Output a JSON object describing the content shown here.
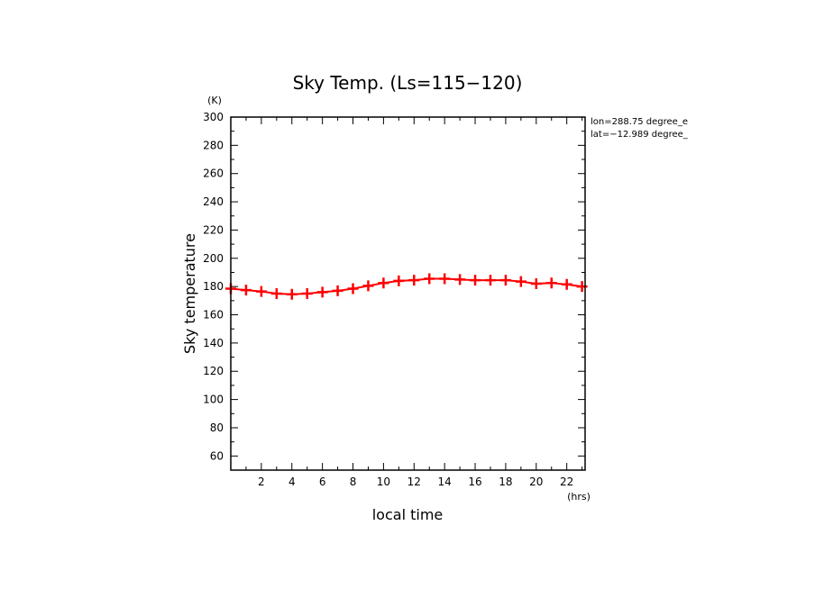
{
  "chart_data": {
    "type": "line",
    "title": "Sky Temp. (Ls=115−120)",
    "xlabel": "local time",
    "ylabel": "Sky temperature",
    "x_unit": "(hrs)",
    "y_unit": "(K)",
    "xlim": [
      0,
      23.2
    ],
    "ylim": [
      50,
      300
    ],
    "x_ticks": [
      2,
      4,
      6,
      8,
      10,
      12,
      14,
      16,
      18,
      20,
      22
    ],
    "y_ticks": [
      60,
      80,
      100,
      120,
      140,
      160,
      180,
      200,
      220,
      240,
      260,
      280,
      300
    ],
    "grid": false,
    "line_color": "#ff0000",
    "x": [
      0,
      1,
      2,
      3,
      4,
      5,
      6,
      7,
      8,
      9,
      10,
      11,
      12,
      13,
      14,
      15,
      16,
      17,
      18,
      19,
      20,
      21,
      22,
      23
    ],
    "series": [
      {
        "values": [
          178.5,
          177.5,
          176.5,
          175,
          174.5,
          175,
          176,
          177,
          178.5,
          180.5,
          182.5,
          184,
          184.5,
          185.5,
          185.5,
          185,
          184.5,
          184.5,
          184.5,
          183.5,
          182,
          182.5,
          181.5,
          180
        ]
      }
    ],
    "annotations": [
      "lon=288.75 degree_e",
      "lat=−12.989 degree_"
    ]
  }
}
